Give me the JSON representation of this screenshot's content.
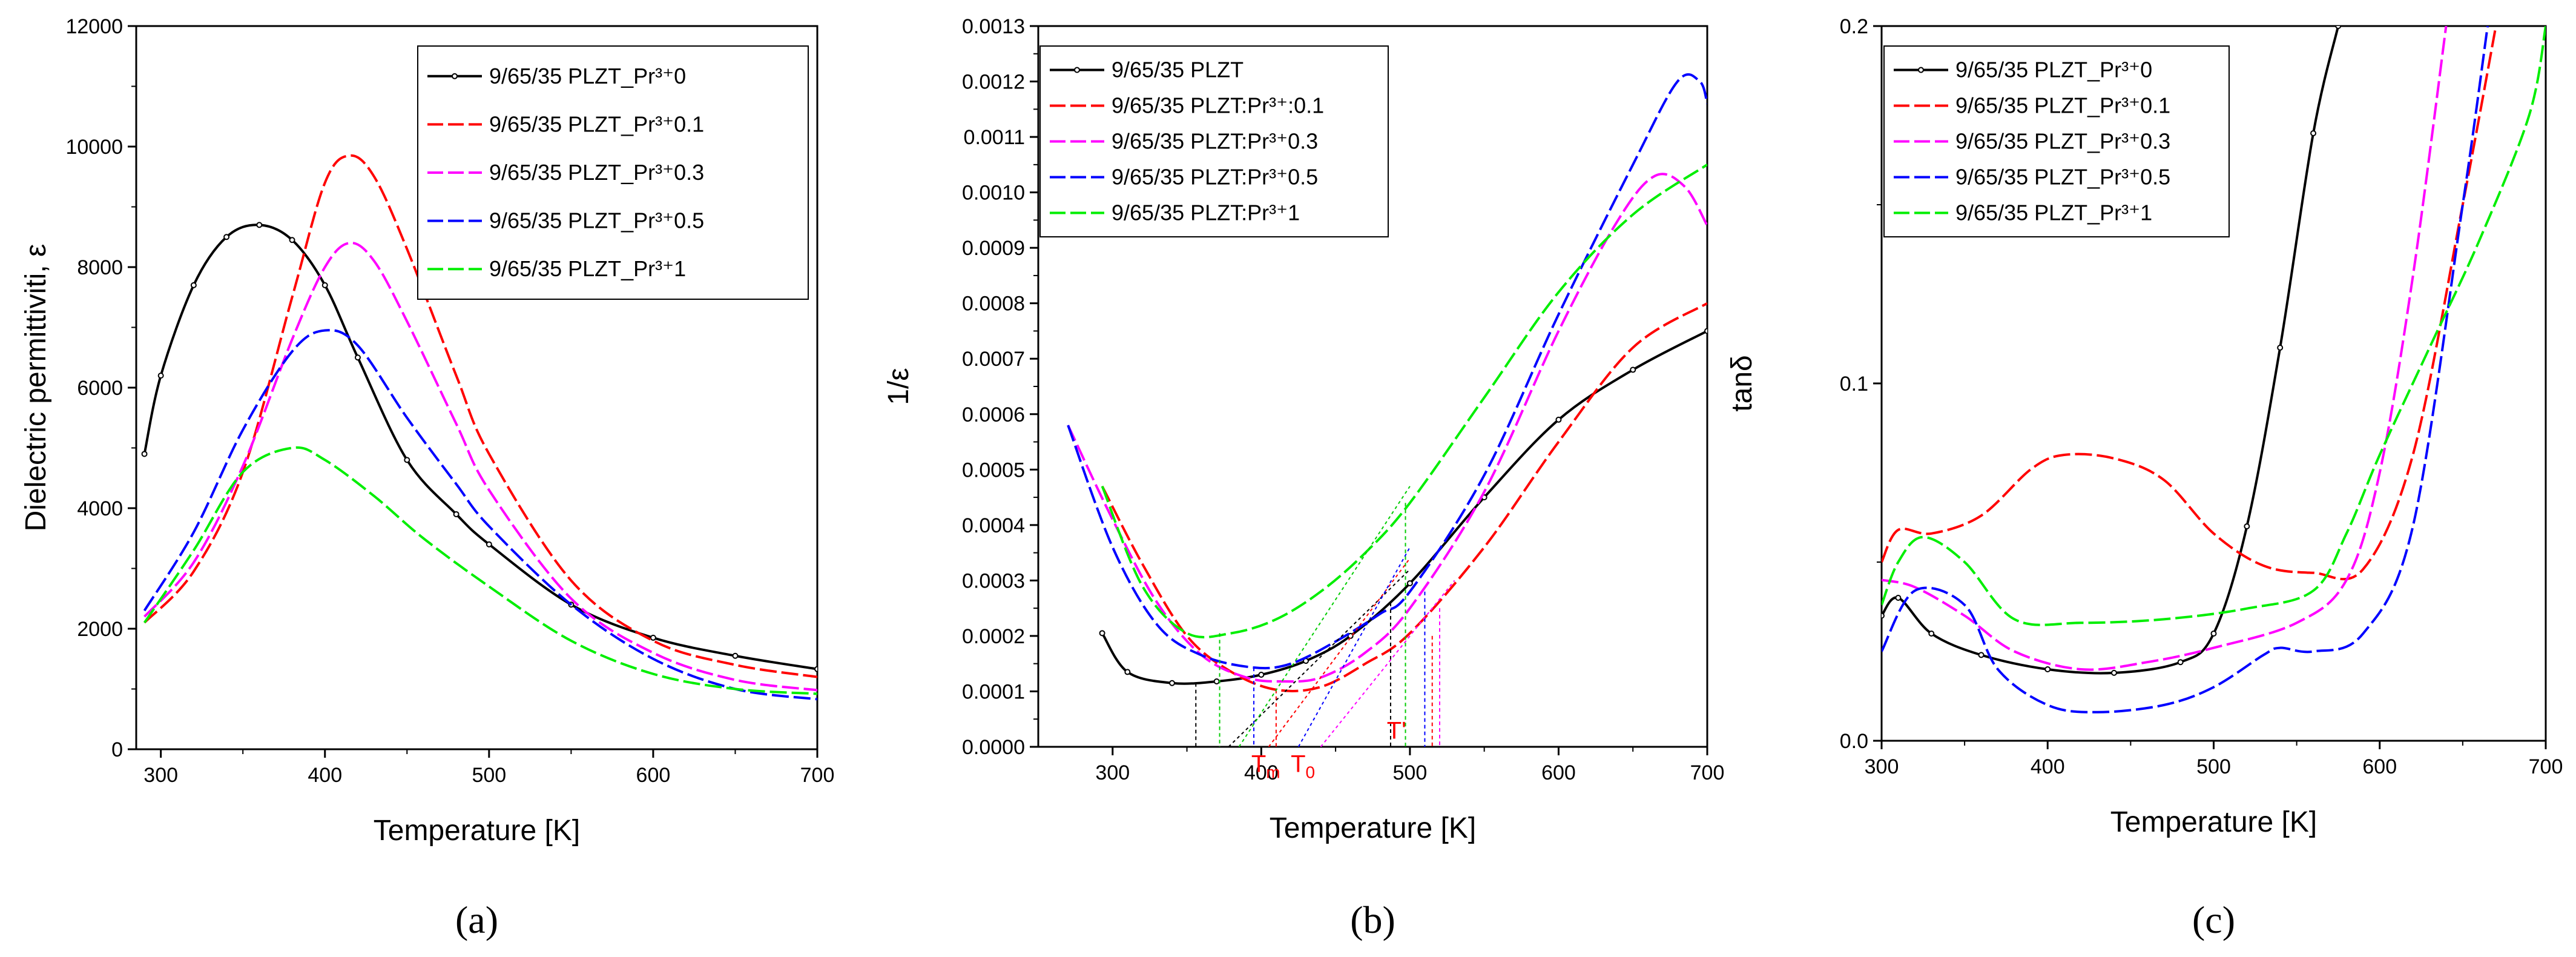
{
  "chart_data": [
    {
      "type": "line",
      "panel_label": "(a)",
      "xlabel": "Temperature [K]",
      "ylabel": "Dielectric permittiviti, ε",
      "xlim": [
        285,
        700
      ],
      "ylim": [
        0,
        12000
      ],
      "xticks": [
        300,
        400,
        500,
        600,
        700
      ],
      "yticks": [
        0,
        2000,
        4000,
        6000,
        8000,
        10000,
        12000
      ],
      "legend_position": "top-right",
      "series": [
        {
          "name": "9/65/35 PLZT_Pr³⁺0",
          "color": "#000000",
          "dash": "solid-dot",
          "x": [
            290,
            300,
            320,
            340,
            360,
            380,
            400,
            420,
            450,
            480,
            500,
            550,
            600,
            650,
            700
          ],
          "y": [
            4900,
            6200,
            7700,
            8500,
            8700,
            8450,
            7700,
            6500,
            4800,
            3900,
            3400,
            2400,
            1850,
            1550,
            1330
          ]
        },
        {
          "name": "9/65/35 PLZT_Pr³⁺0.1",
          "color": "#ff0000",
          "dash": "dash",
          "x": [
            290,
            320,
            350,
            380,
            400,
            415,
            430,
            450,
            480,
            500,
            550,
            600,
            650,
            700
          ],
          "y": [
            2100,
            2950,
            4600,
            7500,
            9400,
            9850,
            9500,
            8300,
            6200,
            4900,
            2800,
            1800,
            1400,
            1200
          ]
        },
        {
          "name": "9/65/35 PLZT_Pr³⁺0.3",
          "color": "#ff00ff",
          "dash": "dash",
          "x": [
            290,
            320,
            350,
            380,
            400,
            415,
            430,
            450,
            480,
            500,
            550,
            600,
            650,
            700
          ],
          "y": [
            2200,
            3100,
            4700,
            6800,
            8000,
            8400,
            8100,
            7100,
            5400,
            4300,
            2500,
            1600,
            1150,
            980
          ]
        },
        {
          "name": "9/65/35 PLZT_Pr³⁺0.5",
          "color": "#0000ff",
          "dash": "dash",
          "x": [
            290,
            320,
            350,
            380,
            400,
            420,
            450,
            480,
            500,
            550,
            600,
            650,
            700
          ],
          "y": [
            2300,
            3600,
            5300,
            6600,
            6950,
            6700,
            5500,
            4400,
            3700,
            2400,
            1500,
            1000,
            830
          ]
        },
        {
          "name": "9/65/35 PLZT_Pr³⁺1",
          "color": "#00ee00",
          "dash": "dash",
          "x": [
            290,
            320,
            350,
            380,
            400,
            430,
            460,
            500,
            550,
            600,
            650,
            700
          ],
          "y": [
            2100,
            3300,
            4600,
            5000,
            4800,
            4200,
            3500,
            2700,
            1800,
            1250,
            1000,
            920
          ]
        }
      ]
    },
    {
      "type": "line",
      "panel_label": "(b)",
      "xlabel": "Temperature [K]",
      "ylabel": "1/ε",
      "xlim": [
        250,
        700
      ],
      "ylim": [
        0,
        0.0013
      ],
      "xticks": [
        300,
        400,
        500,
        600,
        700
      ],
      "yticks": [
        "0.0000",
        "0.0001",
        "0.0002",
        "0.0003",
        "0.0004",
        "0.0005",
        "0.0006",
        "0.0007",
        "0.0008",
        "0.0009",
        "0.0010",
        "0.0011",
        "0.0012",
        "0.0013"
      ],
      "legend_position": "top-left",
      "annotations": [
        {
          "text": "T",
          "sub": "m",
          "x": 403,
          "y": -3e-05
        },
        {
          "text": "T",
          "sub": "0",
          "x": 428,
          "y": -3e-05
        },
        {
          "text": "T'",
          "sub": "",
          "x": 491,
          "y": 3e-05
        }
      ],
      "series": [
        {
          "name": "9/65/35 PLZT",
          "color": "#000000",
          "dash": "solid-dot",
          "x": [
            293,
            310,
            340,
            370,
            400,
            430,
            460,
            500,
            550,
            600,
            650,
            700
          ],
          "y": [
            0.000205,
            0.000135,
            0.000115,
            0.000118,
            0.00013,
            0.000155,
            0.0002,
            0.000295,
            0.00045,
            0.00059,
            0.00068,
            0.00075
          ]
        },
        {
          "name": "9/65/35 PLZT:Pr³⁺:0.1",
          "color": "#ff0000",
          "dash": "dash",
          "x": [
            293,
            320,
            350,
            380,
            410,
            440,
            470,
            500,
            550,
            600,
            650,
            700
          ],
          "y": [
            0.00047,
            0.00033,
            0.0002,
            0.000135,
            0.000103,
            0.000108,
            0.00015,
            0.000205,
            0.00036,
            0.00055,
            0.00072,
            0.0008
          ]
        },
        {
          "name": "9/65/35 PLZT:Pr³⁺0.3",
          "color": "#ff00ff",
          "dash": "dash",
          "x": [
            270,
            300,
            330,
            360,
            390,
            415,
            440,
            470,
            500,
            550,
            600,
            640,
            665,
            685,
            700
          ],
          "y": [
            0.00058,
            0.00041,
            0.00026,
            0.000165,
            0.000125,
            0.000118,
            0.000125,
            0.00017,
            0.00025,
            0.00046,
            0.00075,
            0.00095,
            0.00103,
            0.00101,
            0.00094
          ]
        },
        {
          "name": "9/65/35 PLZT:Pr³⁺0.5",
          "color": "#0000ff",
          "dash": "dash",
          "x": [
            270,
            300,
            330,
            360,
            395,
            420,
            450,
            480,
            500,
            550,
            600,
            650,
            680,
            695,
            700
          ],
          "y": [
            0.00058,
            0.00036,
            0.00022,
            0.000165,
            0.000143,
            0.00015,
            0.00019,
            0.00024,
            0.00028,
            0.00049,
            0.00078,
            0.00105,
            0.0012,
            0.0012,
            0.00116
          ]
        },
        {
          "name": "9/65/35 PLZT:Pr³⁺1",
          "color": "#00ee00",
          "dash": "dash",
          "x": [
            293,
            320,
            350,
            380,
            410,
            440,
            470,
            500,
            550,
            600,
            650,
            700
          ],
          "y": [
            0.00047,
            0.00029,
            0.000205,
            0.000205,
            0.00023,
            0.00028,
            0.00035,
            0.00044,
            0.00063,
            0.00082,
            0.00096,
            0.00105
          ]
        }
      ]
    },
    {
      "type": "line",
      "panel_label": "(c)",
      "xlabel": "Temperature [K]",
      "ylabel": "tanδ",
      "xlim": [
        300,
        700
      ],
      "ylim": [
        0,
        0.2
      ],
      "xticks": [
        300,
        400,
        500,
        600,
        700
      ],
      "yticks": [
        "0.0",
        "0.1",
        "0.2"
      ],
      "legend_position": "top-left",
      "series": [
        {
          "name": "9/65/35 PLZT_Pr³⁺0",
          "color": "#000000",
          "dash": "solid-dot",
          "x": [
            300,
            310,
            330,
            360,
            400,
            440,
            480,
            500,
            520,
            540,
            560,
            575
          ],
          "y": [
            0.035,
            0.04,
            0.03,
            0.024,
            0.02,
            0.019,
            0.022,
            0.03,
            0.06,
            0.11,
            0.17,
            0.2
          ]
        },
        {
          "name": "9/65/35 PLZT_Pr³⁺0.1",
          "color": "#ff0000",
          "dash": "dash",
          "x": [
            300,
            310,
            330,
            360,
            390,
            410,
            440,
            470,
            500,
            530,
            560,
            590,
            620,
            650,
            670
          ],
          "y": [
            0.05,
            0.059,
            0.058,
            0.063,
            0.076,
            0.08,
            0.079,
            0.073,
            0.058,
            0.049,
            0.047,
            0.048,
            0.08,
            0.15,
            0.2
          ]
        },
        {
          "name": "9/65/35 PLZT_Pr³⁺0.3",
          "color": "#ff00ff",
          "dash": "dash",
          "x": [
            300,
            320,
            350,
            380,
            420,
            460,
            500,
            550,
            580,
            600,
            620,
            640
          ],
          "y": [
            0.045,
            0.043,
            0.035,
            0.025,
            0.02,
            0.022,
            0.026,
            0.033,
            0.045,
            0.075,
            0.13,
            0.2
          ]
        },
        {
          "name": "9/65/35 PLZT_Pr³⁺0.5",
          "color": "#0000ff",
          "dash": "dash",
          "x": [
            300,
            320,
            350,
            370,
            400,
            430,
            470,
            500,
            530,
            540,
            560,
            590,
            620,
            650,
            665
          ],
          "y": [
            0.025,
            0.042,
            0.038,
            0.02,
            0.01,
            0.008,
            0.01,
            0.015,
            0.024,
            0.026,
            0.025,
            0.03,
            0.06,
            0.15,
            0.2
          ]
        },
        {
          "name": "9/65/35 PLZT_Pr³⁺1",
          "color": "#00ee00",
          "dash": "dash",
          "x": [
            300,
            310,
            325,
            350,
            380,
            420,
            470,
            520,
            560,
            580,
            600,
            630,
            660,
            690,
            700
          ],
          "y": [
            0.038,
            0.05,
            0.057,
            0.05,
            0.034,
            0.033,
            0.034,
            0.037,
            0.042,
            0.058,
            0.08,
            0.11,
            0.14,
            0.175,
            0.2
          ]
        }
      ]
    }
  ],
  "colors": {
    "axis": "#000000",
    "background": "#ffffff"
  }
}
